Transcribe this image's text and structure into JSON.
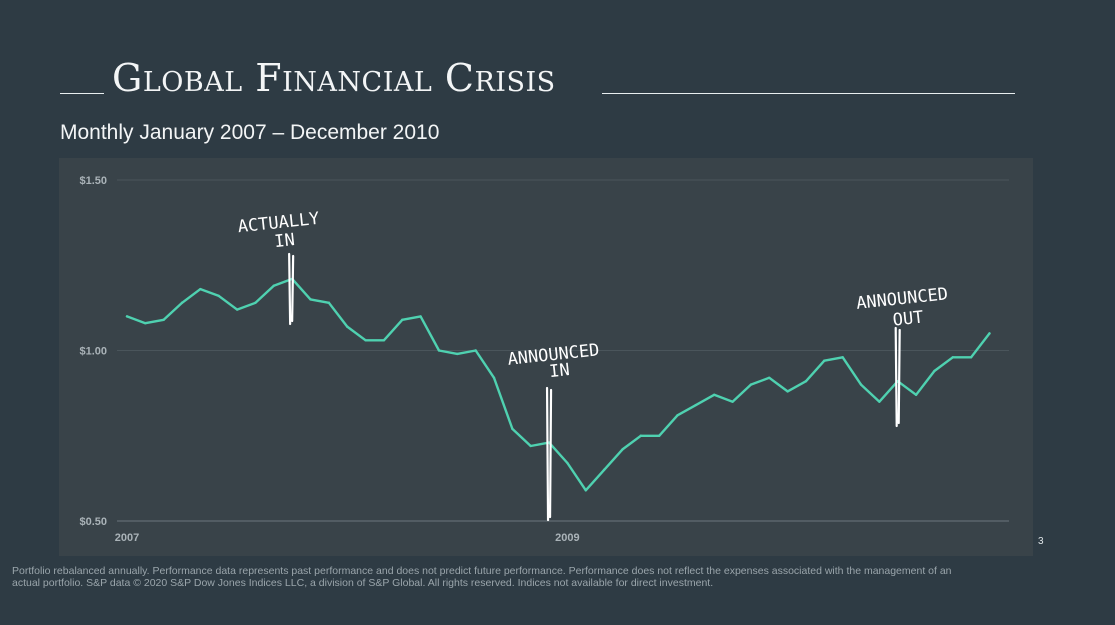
{
  "slide": {
    "title": "Global Financial Crisis",
    "subtitle": "Monthly January 2007 – December 2010",
    "page_number": "3",
    "footer_line1": "Portfolio rebalanced annually. Performance data represents past performance and does not predict future performance. Performance does not reflect the expenses associated with the management of an",
    "footer_line2": "actual portfolio. S&P data © 2020 S&P Dow Jones Indices LLC, a division of S&P Global. All rights reserved. Indices not available for direct investment."
  },
  "chart_data": {
    "type": "line",
    "ylim": [
      0.5,
      1.5
    ],
    "yticks": [
      {
        "value": 0.5,
        "label": "$0.50"
      },
      {
        "value": 1.0,
        "label": "$1.00"
      },
      {
        "value": 1.5,
        "label": "$1.50"
      }
    ],
    "xticks": [
      {
        "index": 0,
        "label": "2007"
      },
      {
        "index": 24,
        "label": "2009"
      }
    ],
    "grid": true,
    "line_color": "#4fd1b0",
    "x_months": 48,
    "values": [
      1.1,
      1.08,
      1.09,
      1.14,
      1.18,
      1.16,
      1.12,
      1.14,
      1.19,
      1.21,
      1.15,
      1.14,
      1.07,
      1.03,
      1.03,
      1.09,
      1.1,
      1.0,
      0.99,
      1.0,
      0.92,
      0.77,
      0.72,
      0.73,
      0.67,
      0.59,
      0.65,
      0.71,
      0.75,
      0.75,
      0.81,
      0.84,
      0.87,
      0.85,
      0.9,
      0.92,
      0.88,
      0.91,
      0.97,
      0.98,
      0.9,
      0.85,
      0.91,
      0.87,
      0.94,
      0.98,
      0.98,
      1.05
    ],
    "annotations": [
      {
        "text_line1": "ACTUALLY",
        "text_line2": "IN",
        "index": 9
      },
      {
        "text_line1": "ANNOUNCED",
        "text_line2": "IN",
        "index": 23
      },
      {
        "text_line1": "ANNOUNCED",
        "text_line2": "OUT",
        "index": 42
      }
    ]
  }
}
